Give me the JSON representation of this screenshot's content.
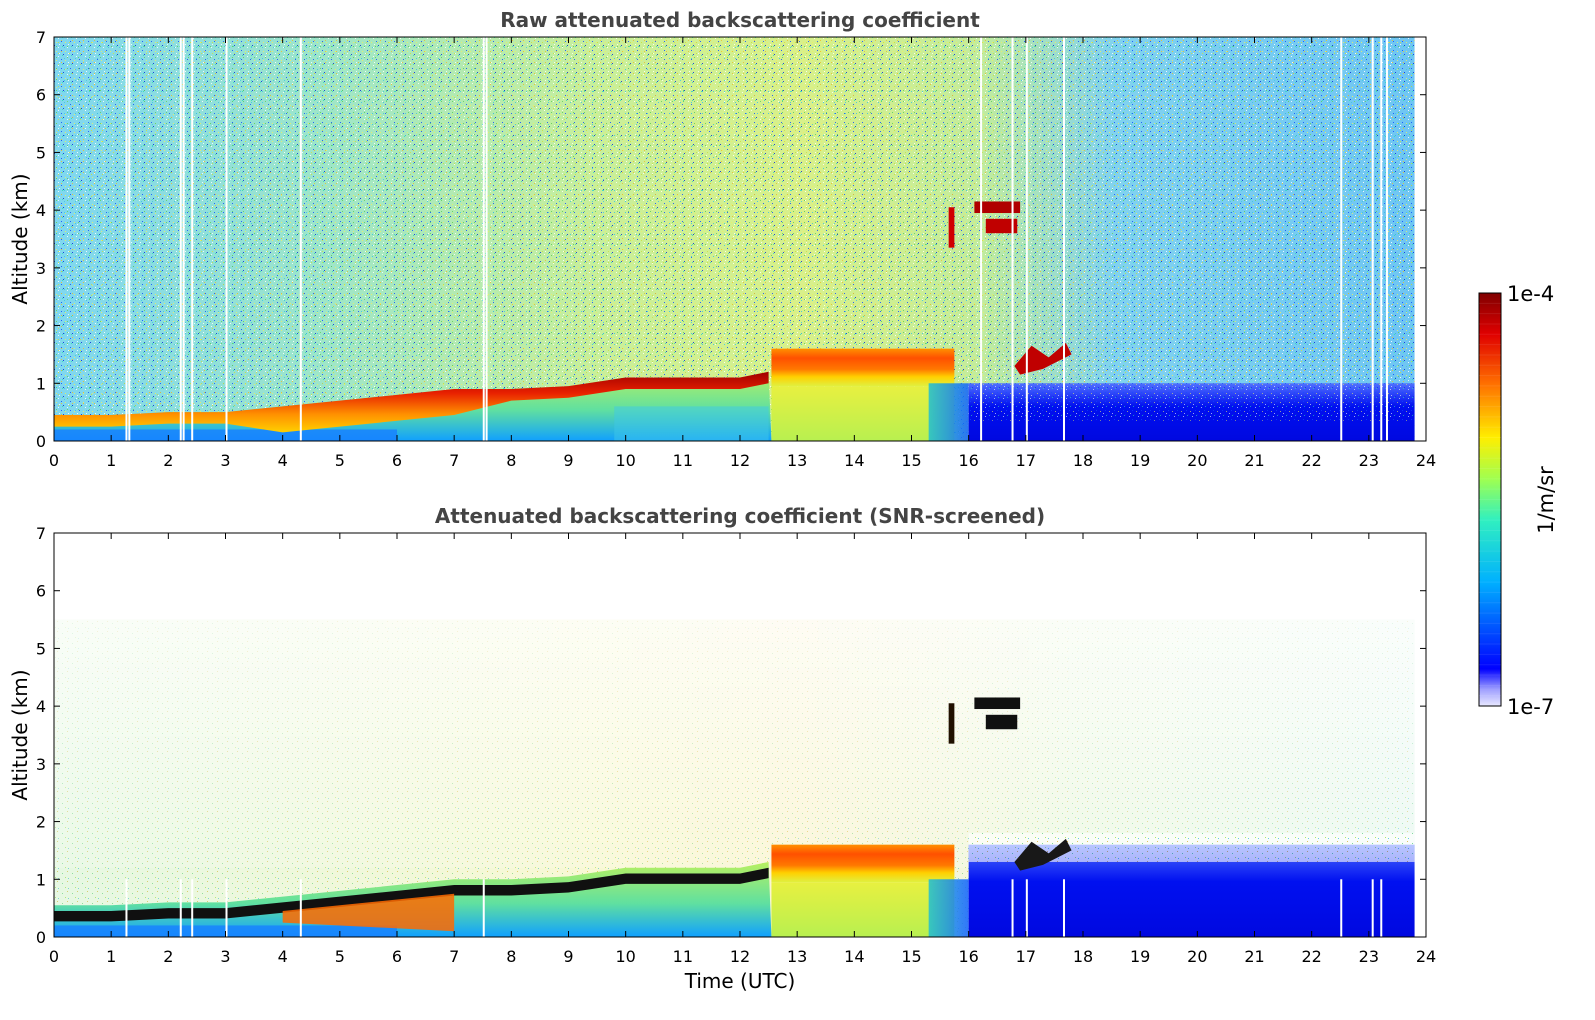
{
  "chart_data": [
    {
      "type": "heatmap",
      "title": "Raw attenuated backscattering coefficient",
      "xlabel": "",
      "ylabel": "Altitude (km)",
      "xlim": [
        0,
        24
      ],
      "ylim": [
        0,
        7
      ],
      "x_ticks": [
        "0",
        "1",
        "2",
        "3",
        "4",
        "5",
        "6",
        "7",
        "8",
        "9",
        "10",
        "11",
        "12",
        "13",
        "14",
        "15",
        "16",
        "17",
        "18",
        "19",
        "20",
        "21",
        "22",
        "23",
        "24"
      ],
      "y_ticks": [
        "0",
        "1",
        "2",
        "3",
        "4",
        "5",
        "6",
        "7"
      ],
      "data_extent_hours": [
        0,
        23.8
      ],
      "layer_top_km": [
        {
          "time": 0,
          "km": 0.45
        },
        {
          "time": 1,
          "km": 0.45
        },
        {
          "time": 2,
          "km": 0.5
        },
        {
          "time": 3,
          "km": 0.5
        },
        {
          "time": 4,
          "km": 0.6
        },
        {
          "time": 5,
          "km": 0.7
        },
        {
          "time": 6,
          "km": 0.8
        },
        {
          "time": 7,
          "km": 0.9
        },
        {
          "time": 8,
          "km": 0.9
        },
        {
          "time": 9,
          "km": 0.95
        },
        {
          "time": 10,
          "km": 1.1
        },
        {
          "time": 11,
          "km": 1.1
        },
        {
          "time": 12,
          "km": 1.1
        },
        {
          "time": 12.5,
          "km": 1.2
        },
        {
          "time": 15.7,
          "km": 1.2
        }
      ],
      "features": [
        {
          "name": "cloud layer",
          "t_start": 12.55,
          "t_end": 15.75,
          "km_bottom": 0.95,
          "km_top": 1.6
        },
        {
          "name": "elevated cloud",
          "t_start": 16.1,
          "t_end": 16.9,
          "km_bottom": 3.6,
          "km_top": 4.15
        },
        {
          "name": "low cloud",
          "t_start": 16.8,
          "t_end": 17.8,
          "km_bottom": 1.2,
          "km_top": 1.7
        }
      ]
    },
    {
      "type": "heatmap",
      "title": "Attenuated backscattering coefficient (SNR-screened)",
      "xlabel": "Time (UTC)",
      "ylabel": "Altitude (km)",
      "xlim": [
        0,
        24
      ],
      "ylim": [
        0,
        7
      ],
      "x_ticks": [
        "0",
        "1",
        "2",
        "3",
        "4",
        "5",
        "6",
        "7",
        "8",
        "9",
        "10",
        "11",
        "12",
        "13",
        "14",
        "15",
        "16",
        "17",
        "18",
        "19",
        "20",
        "21",
        "22",
        "23",
        "24"
      ],
      "y_ticks": [
        "0",
        "1",
        "2",
        "3",
        "4",
        "5",
        "6",
        "7"
      ],
      "data_extent_hours": [
        0,
        23.8
      ],
      "features": [
        {
          "name": "cloud layer",
          "t_start": 12.55,
          "t_end": 15.75,
          "km_bottom": 0.95,
          "km_top": 1.6
        },
        {
          "name": "elevated cloud",
          "t_start": 16.1,
          "t_end": 16.9,
          "km_bottom": 3.6,
          "km_top": 4.15
        },
        {
          "name": "screened boundary layer",
          "t_start": 16,
          "t_end": 23.8,
          "km_bottom": 0,
          "km_top": 1.8
        }
      ]
    }
  ],
  "colorbar": {
    "max_label": "1e-4",
    "min_label": "1e-7",
    "unit_label": "1/m/sr",
    "scale": "log",
    "colors": [
      "#e8e8ff",
      "#0000ff",
      "#00b0ff",
      "#40ffb0",
      "#c0ff40",
      "#ffe000",
      "#ff6000",
      "#e00000",
      "#800000"
    ]
  }
}
